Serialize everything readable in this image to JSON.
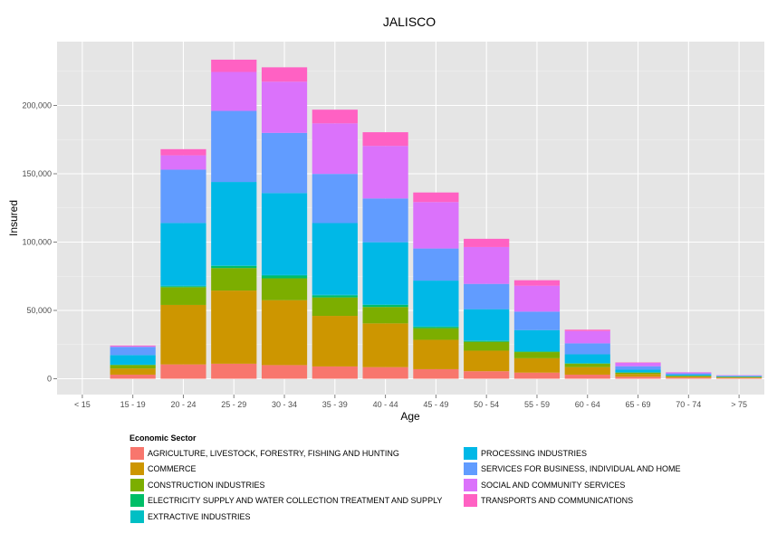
{
  "chart_data": {
    "type": "bar",
    "stacked": true,
    "title": "JALISCO",
    "xlabel": "Age",
    "ylabel": "Insured",
    "ylim": [
      0,
      240000
    ],
    "yticks": [
      0,
      50000,
      100000,
      150000,
      200000
    ],
    "ytick_labels": [
      "0",
      "50,000",
      "100,000",
      "150,000",
      "200,000"
    ],
    "categories": [
      "< 15",
      "15 - 19",
      "20 - 24",
      "25 - 29",
      "30 - 34",
      "35 - 39",
      "40 - 44",
      "45 - 49",
      "50 - 54",
      "55 - 59",
      "60 - 64",
      "65 - 69",
      "70 - 74",
      "> 75"
    ],
    "grid": true,
    "legend_position": "bottom",
    "legend_title": "Economic Sector",
    "series": [
      {
        "name": "AGRICULTURE, LIVESTOCK, FORESTRY, FISHING AND HUNTING",
        "color": "#F8766D",
        "values": [
          0,
          3000,
          10500,
          11000,
          10000,
          9000,
          8500,
          7000,
          5500,
          4500,
          3000,
          1500,
          800,
          500
        ]
      },
      {
        "name": "COMMERCE",
        "color": "#CD9600",
        "values": [
          0,
          4500,
          43500,
          53500,
          47500,
          37000,
          32000,
          21500,
          15000,
          10500,
          5500,
          2000,
          800,
          500
        ]
      },
      {
        "name": "CONSTRUCTION INDUSTRIES",
        "color": "#7CAE00",
        "values": [
          0,
          2500,
          13000,
          16500,
          16000,
          13500,
          12000,
          8500,
          6500,
          4500,
          2500,
          1000,
          500,
          300
        ]
      },
      {
        "name": "ELECTRICITY SUPPLY AND WATER COLLECTION TREATMENT AND SUPPLY",
        "color": "#00BE67",
        "values": [
          0,
          200,
          700,
          1500,
          2000,
          1500,
          1500,
          1000,
          700,
          500,
          300,
          100,
          100,
          50
        ]
      },
      {
        "name": "EXTRACTIVE INDUSTRIES",
        "color": "#00BFC4",
        "values": [
          0,
          100,
          300,
          500,
          400,
          400,
          400,
          300,
          200,
          100,
          100,
          50,
          30,
          20
        ]
      },
      {
        "name": "PROCESSING INDUSTRIES",
        "color": "#00B8E7",
        "values": [
          0,
          7000,
          46000,
          61000,
          60000,
          52500,
          45500,
          33500,
          23000,
          15500,
          6500,
          2000,
          700,
          400
        ]
      },
      {
        "name": "SERVICES FOR BUSINESS, INDIVIDUAL AND HOME",
        "color": "#619CFF",
        "values": [
          0,
          6000,
          39000,
          52000,
          44000,
          36000,
          32000,
          23500,
          18500,
          13500,
          8000,
          2500,
          1000,
          500
        ]
      },
      {
        "name": "SOCIAL AND COMMUNITY SERVICES",
        "color": "#DB72FB",
        "values": [
          0,
          500,
          10500,
          28500,
          37500,
          37000,
          38500,
          34000,
          27000,
          19000,
          9000,
          2500,
          700,
          300
        ]
      },
      {
        "name": "TRANSPORTS AND COMMUNICATIONS",
        "color": "#FF61C3",
        "values": [
          0,
          500,
          4500,
          9000,
          10500,
          10000,
          10000,
          7000,
          6000,
          4000,
          1000,
          300,
          100,
          50
        ]
      }
    ]
  }
}
